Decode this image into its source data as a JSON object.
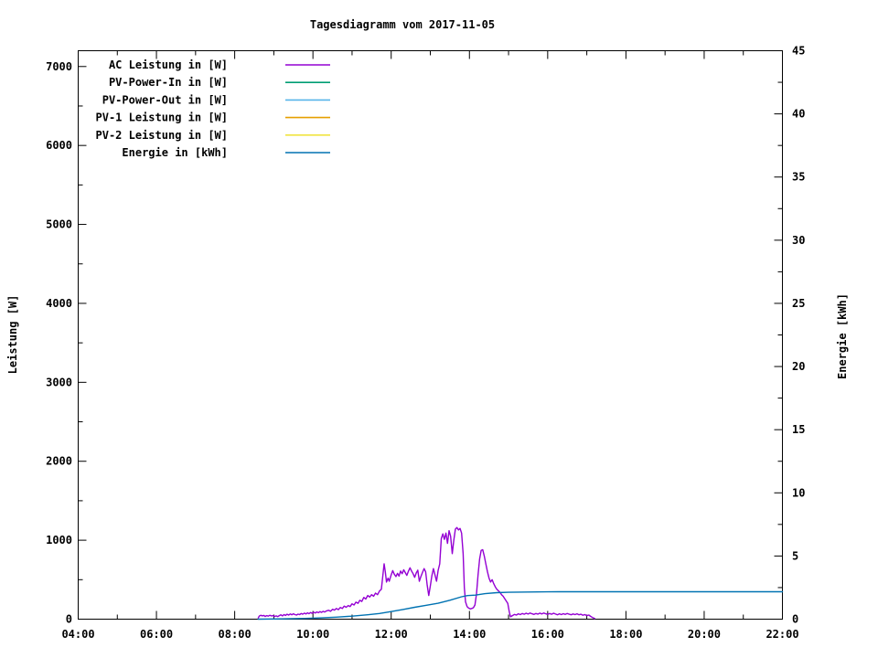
{
  "title": "Tagesdiagramm vom 2017-11-05",
  "axis_labels": {
    "left": "Leistung [W]",
    "right": "Energie [kWh]"
  },
  "chart_data": {
    "type": "line",
    "title": "Tagesdiagramm vom 2017-11-05",
    "grid": false,
    "legend_position": "top-left-inside",
    "x_axis": {
      "unit": "time",
      "range_hours": [
        4,
        22
      ],
      "minor_step_hours": 1,
      "major_ticks": [
        {
          "v": 4,
          "label": "04:00"
        },
        {
          "v": 6,
          "label": "06:00"
        },
        {
          "v": 8,
          "label": "08:00"
        },
        {
          "v": 10,
          "label": "10:00"
        },
        {
          "v": 12,
          "label": "12:00"
        },
        {
          "v": 14,
          "label": "14:00"
        },
        {
          "v": 16,
          "label": "16:00"
        },
        {
          "v": 18,
          "label": "18:00"
        },
        {
          "v": 20,
          "label": "20:00"
        },
        {
          "v": 22,
          "label": "22:00"
        }
      ]
    },
    "y_axis_left": {
      "label": "Leistung [W]",
      "range": [
        0,
        7200
      ],
      "minor_step": 500,
      "major_ticks": [
        {
          "v": 0,
          "label": "0"
        },
        {
          "v": 1000,
          "label": "1000"
        },
        {
          "v": 2000,
          "label": "2000"
        },
        {
          "v": 3000,
          "label": "3000"
        },
        {
          "v": 4000,
          "label": "4000"
        },
        {
          "v": 5000,
          "label": "5000"
        },
        {
          "v": 6000,
          "label": "6000"
        },
        {
          "v": 7000,
          "label": "7000"
        }
      ]
    },
    "y_axis_right": {
      "label": "Energie [kWh]",
      "range": [
        0,
        45
      ],
      "minor_step": 2.5,
      "major_ticks": [
        {
          "v": 0,
          "label": "0"
        },
        {
          "v": 5,
          "label": "5"
        },
        {
          "v": 10,
          "label": "10"
        },
        {
          "v": 15,
          "label": "15"
        },
        {
          "v": 20,
          "label": "20"
        },
        {
          "v": 25,
          "label": "25"
        },
        {
          "v": 30,
          "label": "30"
        },
        {
          "v": 35,
          "label": "35"
        },
        {
          "v": 40,
          "label": "40"
        },
        {
          "v": 45,
          "label": "45"
        }
      ]
    },
    "legend": [
      {
        "label": "AC Leistung in [W]",
        "color": "#9400d3"
      },
      {
        "label": "PV-Power-In in [W]",
        "color": "#009e73"
      },
      {
        "label": "PV-Power-Out in [W]",
        "color": "#56b4e9"
      },
      {
        "label": "PV-1 Leistung in [W]",
        "color": "#e69f00"
      },
      {
        "label": "PV-2 Leistung in [W]",
        "color": "#f0e442"
      },
      {
        "label": "Energie in [kWh]",
        "color": "#0072b2"
      }
    ],
    "series": [
      {
        "name": "AC Leistung in [W]",
        "color": "#9400d3",
        "axis": "left",
        "points": [
          [
            8.6,
            15
          ],
          [
            8.63,
            40
          ],
          [
            8.67,
            50
          ],
          [
            8.7,
            42
          ],
          [
            8.74,
            48
          ],
          [
            8.78,
            35
          ],
          [
            8.82,
            45
          ],
          [
            8.86,
            38
          ],
          [
            8.9,
            50
          ],
          [
            8.94,
            40
          ],
          [
            8.98,
            45
          ],
          [
            9.02,
            35
          ],
          [
            9.06,
            42
          ],
          [
            9.1,
            32
          ],
          [
            9.14,
            45
          ],
          [
            9.18,
            55
          ],
          [
            9.22,
            42
          ],
          [
            9.26,
            58
          ],
          [
            9.3,
            48
          ],
          [
            9.34,
            62
          ],
          [
            9.38,
            52
          ],
          [
            9.42,
            66
          ],
          [
            9.46,
            55
          ],
          [
            9.5,
            68
          ],
          [
            9.54,
            58
          ],
          [
            9.58,
            52
          ],
          [
            9.62,
            64
          ],
          [
            9.66,
            58
          ],
          [
            9.7,
            72
          ],
          [
            9.74,
            62
          ],
          [
            9.78,
            76
          ],
          [
            9.82,
            66
          ],
          [
            9.86,
            80
          ],
          [
            9.9,
            70
          ],
          [
            9.94,
            84
          ],
          [
            9.98,
            74
          ],
          [
            10.02,
            88
          ],
          [
            10.06,
            78
          ],
          [
            10.1,
            92
          ],
          [
            10.14,
            82
          ],
          [
            10.18,
            96
          ],
          [
            10.22,
            86
          ],
          [
            10.26,
            100
          ],
          [
            10.3,
            90
          ],
          [
            10.35,
            105
          ],
          [
            10.4,
            112
          ],
          [
            10.45,
            100
          ],
          [
            10.5,
            125
          ],
          [
            10.55,
            115
          ],
          [
            10.6,
            135
          ],
          [
            10.65,
            120
          ],
          [
            10.7,
            148
          ],
          [
            10.75,
            135
          ],
          [
            10.8,
            165
          ],
          [
            10.85,
            150
          ],
          [
            10.9,
            172
          ],
          [
            10.95,
            160
          ],
          [
            11.0,
            195
          ],
          [
            11.05,
            180
          ],
          [
            11.1,
            215
          ],
          [
            11.15,
            200
          ],
          [
            11.2,
            240
          ],
          [
            11.25,
            225
          ],
          [
            11.3,
            275
          ],
          [
            11.35,
            255
          ],
          [
            11.4,
            300
          ],
          [
            11.45,
            280
          ],
          [
            11.5,
            310
          ],
          [
            11.55,
            290
          ],
          [
            11.6,
            330
          ],
          [
            11.65,
            310
          ],
          [
            11.7,
            355
          ],
          [
            11.75,
            380
          ],
          [
            11.78,
            520
          ],
          [
            11.82,
            700
          ],
          [
            11.85,
            600
          ],
          [
            11.88,
            470
          ],
          [
            11.92,
            520
          ],
          [
            11.95,
            480
          ],
          [
            12.0,
            560
          ],
          [
            12.04,
            615
          ],
          [
            12.08,
            570
          ],
          [
            12.12,
            540
          ],
          [
            12.16,
            580
          ],
          [
            12.2,
            545
          ],
          [
            12.24,
            610
          ],
          [
            12.28,
            575
          ],
          [
            12.32,
            625
          ],
          [
            12.36,
            590
          ],
          [
            12.4,
            555
          ],
          [
            12.44,
            605
          ],
          [
            12.48,
            650
          ],
          [
            12.52,
            610
          ],
          [
            12.56,
            575
          ],
          [
            12.6,
            530
          ],
          [
            12.64,
            585
          ],
          [
            12.68,
            620
          ],
          [
            12.72,
            480
          ],
          [
            12.76,
            540
          ],
          [
            12.8,
            590
          ],
          [
            12.84,
            640
          ],
          [
            12.88,
            600
          ],
          [
            12.92,
            430
          ],
          [
            12.96,
            300
          ],
          [
            13.0,
            420
          ],
          [
            13.04,
            550
          ],
          [
            13.08,
            640
          ],
          [
            13.12,
            560
          ],
          [
            13.16,
            480
          ],
          [
            13.2,
            620
          ],
          [
            13.24,
            700
          ],
          [
            13.28,
            1020
          ],
          [
            13.32,
            1080
          ],
          [
            13.36,
            1010
          ],
          [
            13.4,
            1090
          ],
          [
            13.44,
            960
          ],
          [
            13.48,
            1120
          ],
          [
            13.52,
            1050
          ],
          [
            13.56,
            830
          ],
          [
            13.6,
            1000
          ],
          [
            13.64,
            1140
          ],
          [
            13.68,
            1160
          ],
          [
            13.72,
            1130
          ],
          [
            13.76,
            1150
          ],
          [
            13.8,
            1090
          ],
          [
            13.84,
            830
          ],
          [
            13.87,
            400
          ],
          [
            13.9,
            220
          ],
          [
            13.94,
            160
          ],
          [
            13.98,
            140
          ],
          [
            14.02,
            130
          ],
          [
            14.06,
            135
          ],
          [
            14.1,
            145
          ],
          [
            14.14,
            180
          ],
          [
            14.18,
            320
          ],
          [
            14.22,
            560
          ],
          [
            14.26,
            760
          ],
          [
            14.3,
            870
          ],
          [
            14.34,
            880
          ],
          [
            14.38,
            800
          ],
          [
            14.42,
            700
          ],
          [
            14.46,
            600
          ],
          [
            14.5,
            520
          ],
          [
            14.54,
            470
          ],
          [
            14.58,
            500
          ],
          [
            14.62,
            450
          ],
          [
            14.66,
            410
          ],
          [
            14.7,
            380
          ],
          [
            14.74,
            360
          ],
          [
            14.78,
            340
          ],
          [
            14.82,
            310
          ],
          [
            14.86,
            290
          ],
          [
            14.9,
            260
          ],
          [
            14.94,
            230
          ],
          [
            14.98,
            200
          ],
          [
            15.02,
            90
          ],
          [
            15.05,
            30
          ],
          [
            15.1,
            45
          ],
          [
            15.15,
            60
          ],
          [
            15.2,
            52
          ],
          [
            15.25,
            68
          ],
          [
            15.3,
            58
          ],
          [
            15.35,
            72
          ],
          [
            15.4,
            62
          ],
          [
            15.45,
            75
          ],
          [
            15.5,
            65
          ],
          [
            15.55,
            78
          ],
          [
            15.6,
            68
          ],
          [
            15.65,
            60
          ],
          [
            15.7,
            72
          ],
          [
            15.75,
            64
          ],
          [
            15.8,
            76
          ],
          [
            15.85,
            66
          ],
          [
            15.9,
            78
          ],
          [
            15.95,
            68
          ],
          [
            16.0,
            60
          ],
          [
            16.05,
            72
          ],
          [
            16.1,
            62
          ],
          [
            16.15,
            75
          ],
          [
            16.2,
            65
          ],
          [
            16.25,
            55
          ],
          [
            16.3,
            68
          ],
          [
            16.35,
            58
          ],
          [
            16.4,
            70
          ],
          [
            16.45,
            60
          ],
          [
            16.5,
            72
          ],
          [
            16.55,
            62
          ],
          [
            16.6,
            55
          ],
          [
            16.65,
            66
          ],
          [
            16.7,
            58
          ],
          [
            16.75,
            68
          ],
          [
            16.8,
            55
          ],
          [
            16.85,
            62
          ],
          [
            16.9,
            50
          ],
          [
            16.95,
            58
          ],
          [
            17.0,
            45
          ],
          [
            17.05,
            52
          ],
          [
            17.1,
            35
          ],
          [
            17.15,
            20
          ],
          [
            17.2,
            8
          ]
        ]
      },
      {
        "name": "Energie in [kWh]",
        "color": "#0072b2",
        "axis": "right",
        "points": [
          [
            8.6,
            0.0
          ],
          [
            9.2,
            0.02
          ],
          [
            9.8,
            0.06
          ],
          [
            10.2,
            0.1
          ],
          [
            10.6,
            0.16
          ],
          [
            11.0,
            0.24
          ],
          [
            11.4,
            0.35
          ],
          [
            11.7,
            0.45
          ],
          [
            12.0,
            0.6
          ],
          [
            12.3,
            0.77
          ],
          [
            12.6,
            0.94
          ],
          [
            12.9,
            1.1
          ],
          [
            13.2,
            1.26
          ],
          [
            13.5,
            1.5
          ],
          [
            13.8,
            1.77
          ],
          [
            13.95,
            1.87
          ],
          [
            14.15,
            1.9
          ],
          [
            14.4,
            2.02
          ],
          [
            14.7,
            2.1
          ],
          [
            15.0,
            2.13
          ],
          [
            15.5,
            2.15
          ],
          [
            16.0,
            2.16
          ],
          [
            16.3,
            2.17
          ],
          [
            22.0,
            2.17
          ]
        ]
      }
    ]
  }
}
